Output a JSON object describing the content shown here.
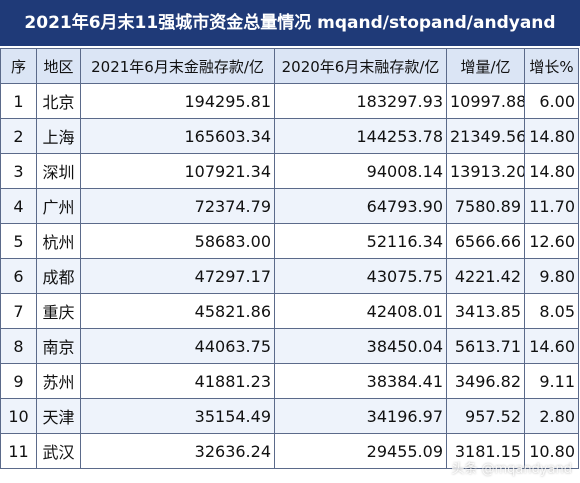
{
  "title": "2021年6月末11强城市资金总量情况 mqand/stopand/andyand",
  "headers": {
    "index": "序",
    "city": "地区",
    "total_2021": "2021年6月末金融存款/亿",
    "total_2020": "2020年6月末融存款/亿",
    "increase": "增量/亿",
    "growth": "增长%"
  },
  "rows": [
    {
      "index": "1",
      "city": "北京",
      "total_2021": "194295.81",
      "total_2020": "183297.93",
      "increase": "10997.88",
      "growth": "6.00"
    },
    {
      "index": "2",
      "city": "上海",
      "total_2021": "165603.34",
      "total_2020": "144253.78",
      "increase": "21349.56",
      "growth": "14.80"
    },
    {
      "index": "3",
      "city": "深圳",
      "total_2021": "107921.34",
      "total_2020": "94008.14",
      "increase": "13913.20",
      "growth": "14.80"
    },
    {
      "index": "4",
      "city": "广州",
      "total_2021": "72374.79",
      "total_2020": "64793.90",
      "increase": "7580.89",
      "growth": "11.70"
    },
    {
      "index": "5",
      "city": "杭州",
      "total_2021": "58683.00",
      "total_2020": "52116.34",
      "increase": "6566.66",
      "growth": "12.60"
    },
    {
      "index": "6",
      "city": "成都",
      "total_2021": "47297.17",
      "total_2020": "43075.75",
      "increase": "4221.42",
      "growth": "9.80"
    },
    {
      "index": "7",
      "city": "重庆",
      "total_2021": "45821.86",
      "total_2020": "42408.01",
      "increase": "3413.85",
      "growth": "8.05"
    },
    {
      "index": "8",
      "city": "南京",
      "total_2021": "44063.75",
      "total_2020": "38450.04",
      "increase": "5613.71",
      "growth": "14.60"
    },
    {
      "index": "9",
      "city": "苏州",
      "total_2021": "41881.23",
      "total_2020": "38384.41",
      "increase": "3496.82",
      "growth": "9.11"
    },
    {
      "index": "10",
      "city": "天津",
      "total_2021": "35154.49",
      "total_2020": "34196.97",
      "increase": "957.52",
      "growth": "2.80"
    },
    {
      "index": "11",
      "city": "武汉",
      "total_2021": "32636.24",
      "total_2020": "29455.09",
      "increase": "3181.15",
      "growth": "10.80"
    }
  ],
  "watermark": "头条 @mqandyand"
}
